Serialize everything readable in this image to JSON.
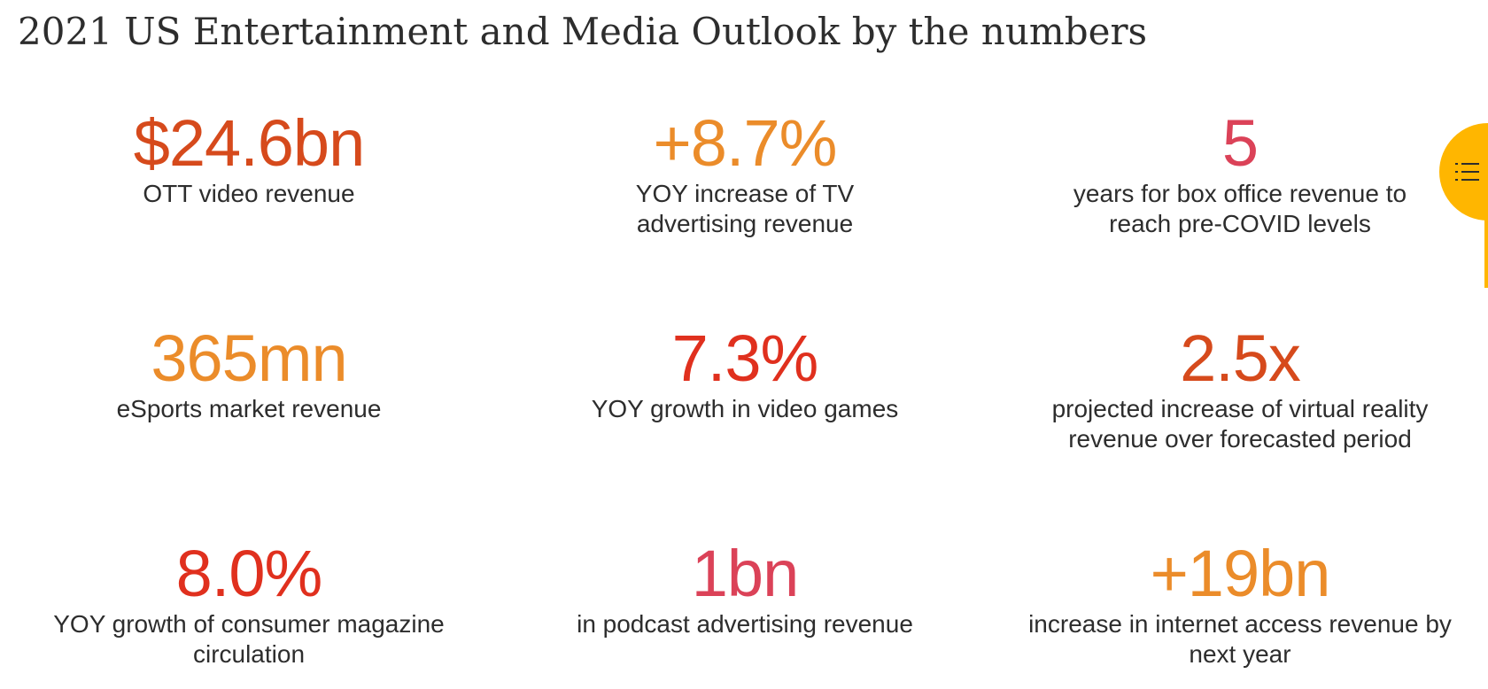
{
  "page": {
    "title": "2021 US Entertainment and Media Outlook by the numbers"
  },
  "colors": {
    "dark_orange": "#d64a1c",
    "orange": "#eb8c2a",
    "rose": "#db4258",
    "red": "#e0301e",
    "text": "#2d2d2d",
    "yellow": "#ffb600"
  },
  "stats": [
    {
      "value": "$24.6bn",
      "label": "OTT video revenue",
      "color": "#d64a1c"
    },
    {
      "value": "+8.7%",
      "label": "YOY increase of TV advertising revenue",
      "color": "#eb8c2a"
    },
    {
      "value": "5",
      "label": "years for box office revenue to reach pre-COVID levels",
      "color": "#db4258"
    },
    {
      "value": "365mn",
      "label": "eSports market revenue",
      "color": "#eb8c2a"
    },
    {
      "value": "7.3%",
      "label": "YOY growth in video games",
      "color": "#e0301e"
    },
    {
      "value": "2.5x",
      "label": "projected increase of virtual reality revenue over forecasted period",
      "color": "#d64a1c"
    },
    {
      "value": "8.0%",
      "label": "YOY growth of consumer magazine circulation",
      "color": "#e0301e"
    },
    {
      "value": "1bn",
      "label": "in podcast advertising revenue",
      "color": "#db4258"
    },
    {
      "value": "+19bn",
      "label": "increase in internet access revenue by next year",
      "color": "#eb8c2a"
    }
  ],
  "toc_button": {
    "icon": "list-icon",
    "color": "#ffb600"
  }
}
